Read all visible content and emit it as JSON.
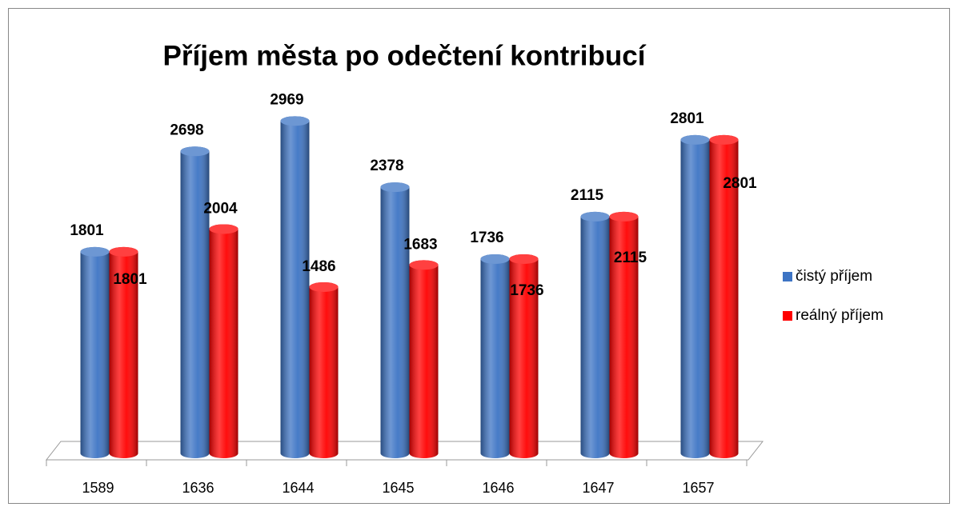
{
  "chart_data": {
    "type": "bar",
    "title": "Příjem města po odečtení kontribucí",
    "categories": [
      "1589",
      "1636",
      "1644",
      "1645",
      "1646",
      "1647",
      "1657"
    ],
    "series": [
      {
        "name": "čistý příjem",
        "color": "#3d74c4",
        "values": [
          1801,
          2698,
          2969,
          2378,
          1736,
          2115,
          2801
        ]
      },
      {
        "name": "reálný příjem",
        "color": "#ff0000",
        "values": [
          1801,
          2004,
          1486,
          1683,
          1736,
          2115,
          2801
        ]
      }
    ],
    "ylim": [
      0,
      3000
    ],
    "legend": "right"
  }
}
